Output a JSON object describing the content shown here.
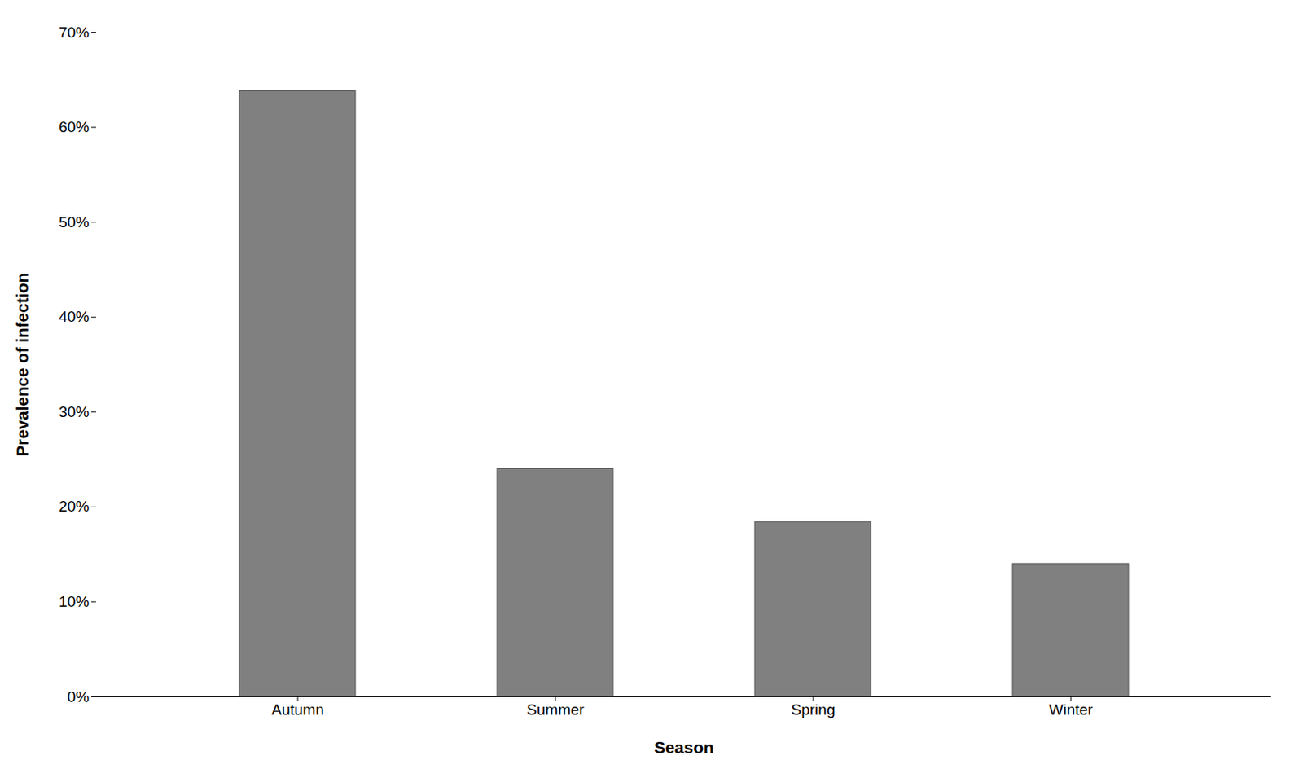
{
  "chart_data": {
    "type": "bar",
    "categories": [
      "Autumn",
      "Summer",
      "Spring",
      "Winter"
    ],
    "values": [
      0.638,
      0.24,
      0.184,
      0.14
    ],
    "color": "#808080",
    "xlabel": "Season",
    "ylabel": "Prevalence of infection",
    "ylim": [
      0,
      0.7
    ],
    "yticks": [
      {
        "value": 0.0,
        "label": "0%"
      },
      {
        "value": 0.1,
        "label": "10%"
      },
      {
        "value": 0.2,
        "label": "20%"
      },
      {
        "value": 0.3,
        "label": "30%"
      },
      {
        "value": 0.4,
        "label": "40%"
      },
      {
        "value": 0.5,
        "label": "50%"
      },
      {
        "value": 0.6,
        "label": "60%"
      },
      {
        "value": 0.7,
        "label": "70%"
      }
    ],
    "grid": false
  }
}
